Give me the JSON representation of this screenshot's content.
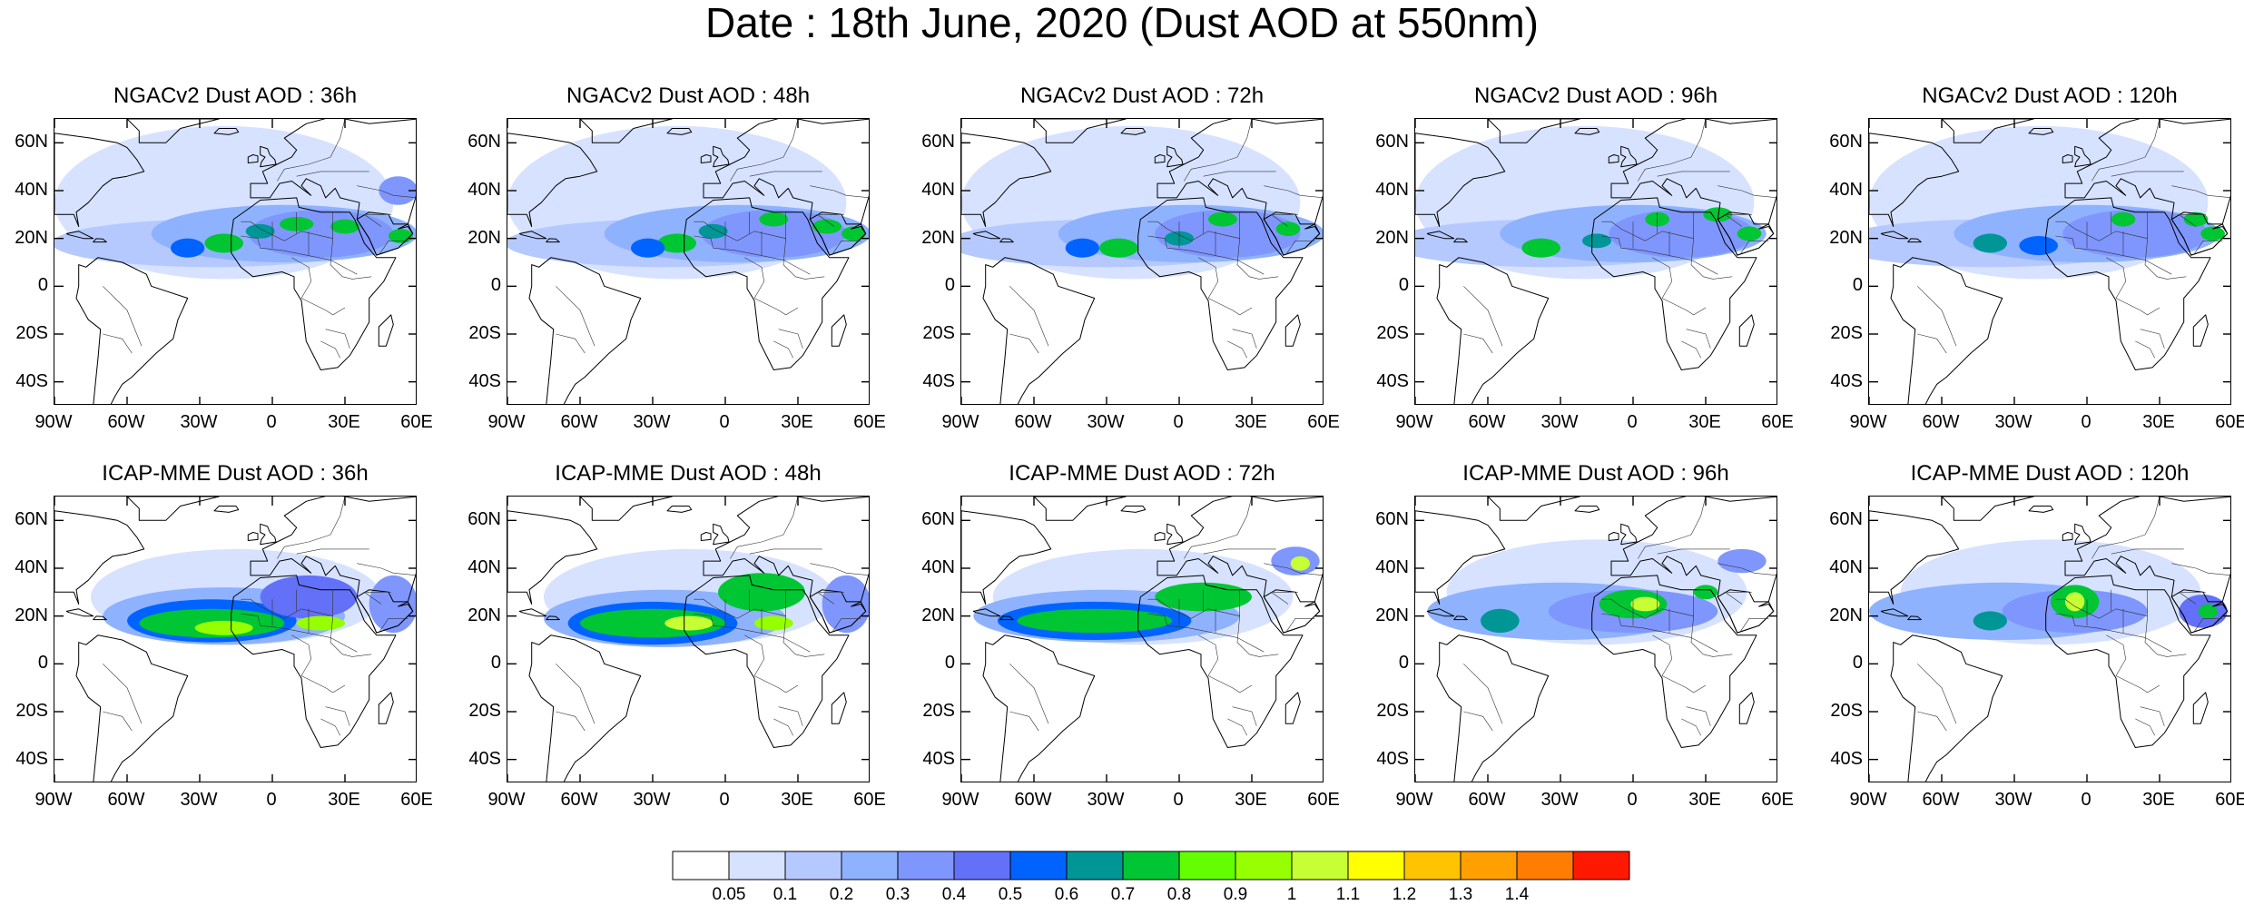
{
  "title": "Date : 18th June, 2020 (Dust AOD at 550nm)",
  "panels": [
    {
      "title": "NGACv2 Dust AOD : 36h",
      "model": "NGACv2",
      "lead_hours": 36
    },
    {
      "title": "NGACv2 Dust AOD : 48h",
      "model": "NGACv2",
      "lead_hours": 48
    },
    {
      "title": "NGACv2 Dust AOD : 72h",
      "model": "NGACv2",
      "lead_hours": 72
    },
    {
      "title": "NGACv2 Dust AOD : 96h",
      "model": "NGACv2",
      "lead_hours": 96
    },
    {
      "title": "NGACv2 Dust AOD : 120h",
      "model": "NGACv2",
      "lead_hours": 120
    },
    {
      "title": "ICAP-MME Dust AOD : 36h",
      "model": "ICAP-MME",
      "lead_hours": 36
    },
    {
      "title": "ICAP-MME Dust AOD : 48h",
      "model": "ICAP-MME",
      "lead_hours": 48
    },
    {
      "title": "ICAP-MME Dust AOD : 72h",
      "model": "ICAP-MME",
      "lead_hours": 72
    },
    {
      "title": "ICAP-MME Dust AOD : 96h",
      "model": "ICAP-MME",
      "lead_hours": 96
    },
    {
      "title": "ICAP-MME Dust AOD : 120h",
      "model": "ICAP-MME",
      "lead_hours": 120
    }
  ],
  "lat_ticks": [
    "60N",
    "40N",
    "20N",
    "0",
    "20S",
    "40S"
  ],
  "lon_ticks": [
    "90W",
    "60W",
    "30W",
    "0",
    "30E",
    "60E"
  ],
  "map_extent": {
    "lon": [
      -90,
      60
    ],
    "lat": [
      -50,
      70
    ]
  },
  "colorbar": {
    "levels": [
      "0.05",
      "0.1",
      "0.2",
      "0.3",
      "0.4",
      "0.5",
      "0.6",
      "0.7",
      "0.8",
      "0.9",
      "1",
      "1.1",
      "1.2",
      "1.3",
      "1.4"
    ],
    "colors": [
      "#ffffff",
      "#d6e2ff",
      "#b5c9ff",
      "#8fb2ff",
      "#7f96ff",
      "#6370f8",
      "#0063ff",
      "#009696",
      "#00c633",
      "#63ff00",
      "#96ff00",
      "#c6ff33",
      "#ffff00",
      "#ffc400",
      "#ffa000",
      "#ff7d00",
      "#ff1900"
    ]
  }
}
